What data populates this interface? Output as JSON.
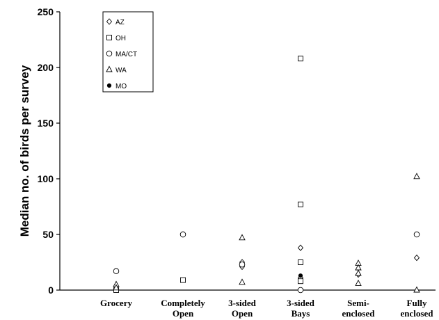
{
  "chart_data": {
    "type": "scatter",
    "title": "",
    "xlabel": "",
    "ylabel": "Median no. of birds per survey",
    "categories": [
      "Grocery",
      "Completely Open",
      "3-sided Open",
      "3-sided Bays",
      "Semi-enclosed",
      "Fully enclosed"
    ],
    "category_label_lines": [
      [
        "Grocery"
      ],
      [
        "Completely",
        "Open"
      ],
      [
        "3-sided",
        "Open"
      ],
      [
        "3-sided",
        "Bays"
      ],
      [
        "Semi-",
        "enclosed"
      ],
      [
        "Fully",
        "enclosed"
      ]
    ],
    "ylim": [
      0,
      250
    ],
    "yticks": [
      0,
      50,
      100,
      150,
      200,
      250
    ],
    "grid": false,
    "legend_position": "top-left",
    "series": [
      {
        "name": "AZ",
        "marker": "diamond",
        "points": [
          {
            "category": "Grocery",
            "y": 1
          },
          {
            "category": "Completely Open",
            "y": 50
          },
          {
            "category": "3-sided Open",
            "y": 25
          },
          {
            "category": "3-sided Open",
            "y": 21
          },
          {
            "category": "3-sided Bays",
            "y": 38
          },
          {
            "category": "3-sided Bays",
            "y": 11
          },
          {
            "category": "Semi-enclosed",
            "y": 14
          },
          {
            "category": "Fully enclosed",
            "y": 29
          }
        ]
      },
      {
        "name": "OH",
        "marker": "square",
        "points": [
          {
            "category": "Grocery",
            "y": 0
          },
          {
            "category": "Completely Open",
            "y": 9
          },
          {
            "category": "3-sided Bays",
            "y": 208
          },
          {
            "category": "3-sided Bays",
            "y": 77
          },
          {
            "category": "3-sided Bays",
            "y": 25
          },
          {
            "category": "3-sided Bays",
            "y": 8
          }
        ]
      },
      {
        "name": "MA/CT",
        "marker": "circle",
        "points": [
          {
            "category": "Grocery",
            "y": 17
          },
          {
            "category": "Completely Open",
            "y": 50
          },
          {
            "category": "3-sided Open",
            "y": 23
          },
          {
            "category": "3-sided Bays",
            "y": 0
          },
          {
            "category": "Fully enclosed",
            "y": 50
          }
        ]
      },
      {
        "name": "WA",
        "marker": "triangle",
        "points": [
          {
            "category": "Grocery",
            "y": 5
          },
          {
            "category": "Grocery",
            "y": 2
          },
          {
            "category": "3-sided Open",
            "y": 47
          },
          {
            "category": "3-sided Open",
            "y": 7
          },
          {
            "category": "Semi-enclosed",
            "y": 24
          },
          {
            "category": "Semi-enclosed",
            "y": 20
          },
          {
            "category": "Semi-enclosed",
            "y": 15
          },
          {
            "category": "Semi-enclosed",
            "y": 6
          },
          {
            "category": "Fully enclosed",
            "y": 102
          },
          {
            "category": "Fully enclosed",
            "y": 0
          }
        ]
      },
      {
        "name": "MO",
        "marker": "filled-circle",
        "points": [
          {
            "category": "3-sided Bays",
            "y": 13
          }
        ]
      }
    ]
  }
}
